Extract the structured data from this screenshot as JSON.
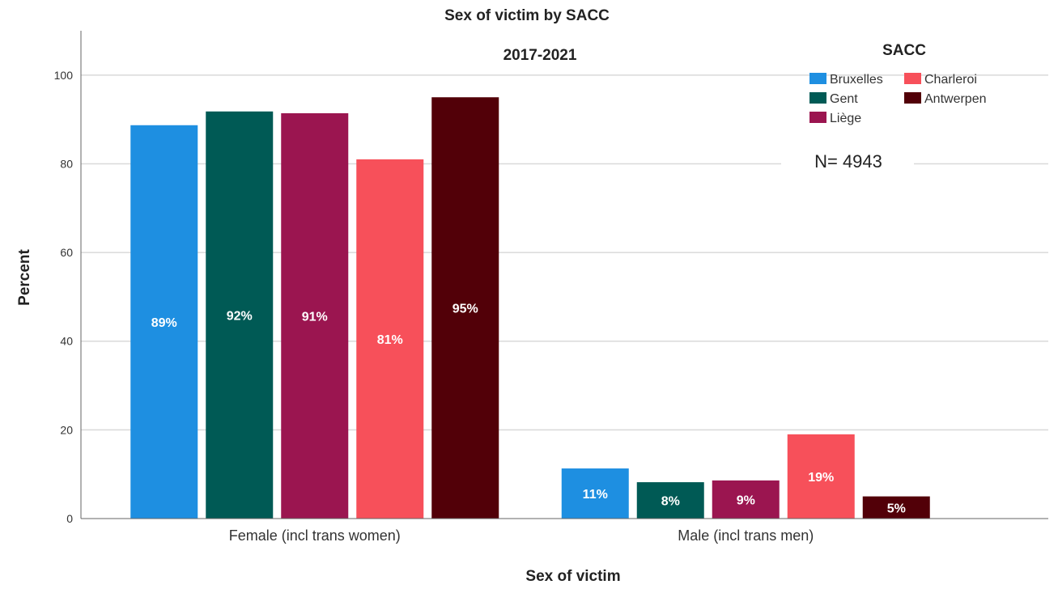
{
  "chart_data": {
    "type": "bar",
    "title": "Sex of victim by SACC",
    "subtitle": "2017-2021",
    "xlabel": "Sex of victim",
    "ylabel": "Percent",
    "ylim": [
      0,
      110
    ],
    "yticks": [
      0,
      20,
      40,
      60,
      80,
      100
    ],
    "categories": [
      "Female (incl trans women)",
      "Male (incl trans men)"
    ],
    "series": [
      {
        "name": "Bruxelles",
        "color": "#1e8fe1",
        "values": [
          88.7,
          11.3
        ],
        "labels": [
          "89%",
          "11%"
        ]
      },
      {
        "name": "Gent",
        "color": "#005a55",
        "values": [
          91.8,
          8.2
        ],
        "labels": [
          "92%",
          "8%"
        ]
      },
      {
        "name": "Liège",
        "color": "#9b1550",
        "values": [
          91.4,
          8.6
        ],
        "labels": [
          "91%",
          "9%"
        ]
      },
      {
        "name": "Charleroi",
        "color": "#f7505a",
        "values": [
          81.0,
          19.0
        ],
        "labels": [
          "81%",
          "19%"
        ]
      },
      {
        "name": "Antwerpen",
        "color": "#520008",
        "values": [
          95.0,
          5.0
        ],
        "labels": [
          "95%",
          "5%"
        ]
      }
    ],
    "grid": true,
    "legend": {
      "title": "SACC",
      "position": "top-right"
    },
    "annotation": "N= 4943"
  }
}
